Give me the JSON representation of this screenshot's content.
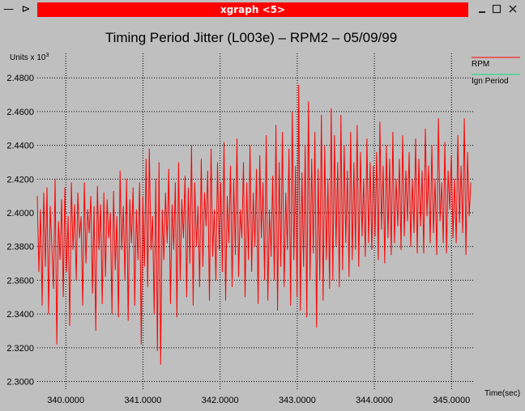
{
  "window": {
    "title": "xgraph <5>",
    "icons": [
      "minus-pin-icon",
      "minimize-icon",
      "maximize-icon",
      "close-icon"
    ]
  },
  "chart_data": {
    "type": "line",
    "title": "Timing Period Jitter (L003e) – RPM2 – 05/09/99",
    "ylabel": "Units x 10",
    "ylabel_exponent": "3",
    "xlabel": "Time(sec)",
    "xlim": [
      339.63,
      345.28
    ],
    "ylim": [
      2.2945,
      2.4945
    ],
    "x_ticks": [
      "340.0000",
      "341.0000",
      "342.0000",
      "343.0000",
      "344.0000",
      "345.0000"
    ],
    "x_tick_values": [
      340,
      341,
      342,
      343,
      344,
      345
    ],
    "y_ticks": [
      "2.3000",
      "2.3200",
      "2.3400",
      "2.3600",
      "2.3800",
      "2.4000",
      "2.4200",
      "2.4400",
      "2.4600",
      "2.4800"
    ],
    "y_tick_values": [
      2.3,
      2.32,
      2.34,
      2.36,
      2.38,
      2.4,
      2.42,
      2.44,
      2.46,
      2.48
    ],
    "grid": true,
    "legend_position": "top-right",
    "series": [
      {
        "name": "RPM",
        "color": "#ff0000",
        "x_start": 339.63,
        "x_end": 345.25,
        "values": [
          2.41,
          2.365,
          2.402,
          2.345,
          2.412,
          2.368,
          2.415,
          2.34,
          2.404,
          2.38,
          2.355,
          2.42,
          2.322,
          2.395,
          2.372,
          2.408,
          2.35,
          2.415,
          2.365,
          2.398,
          2.333,
          2.418,
          2.378,
          2.405,
          2.36,
          2.412,
          2.385,
          2.398,
          2.345,
          2.418,
          2.37,
          2.402,
          2.388,
          2.41,
          2.352,
          2.404,
          2.33,
          2.416,
          2.378,
          2.405,
          2.346,
          2.412,
          2.362,
          2.408,
          2.385,
          2.4,
          2.34,
          2.413,
          2.366,
          2.398,
          2.338,
          2.425,
          2.378,
          2.404,
          2.36,
          2.42,
          2.336,
          2.408,
          2.382,
          2.415,
          2.345,
          2.402,
          2.372,
          2.418,
          2.322,
          2.41,
          2.368,
          2.432,
          2.356,
          2.438,
          2.378,
          2.398,
          2.34,
          2.42,
          2.318,
          2.43,
          2.31,
          2.402,
          2.372,
          2.412,
          2.382,
          2.426,
          2.346,
          2.405,
          2.378,
          2.418,
          2.338,
          2.43,
          2.36,
          2.408,
          2.385,
          2.422,
          2.35,
          2.415,
          2.37,
          2.44,
          2.345,
          2.418,
          2.38,
          2.404,
          2.356,
          2.432,
          2.368,
          2.412,
          2.392,
          2.425,
          2.348,
          2.438,
          2.374,
          2.402,
          2.36,
          2.43,
          2.378,
          2.418,
          2.365,
          2.442,
          2.348,
          2.41,
          2.382,
          2.428,
          2.356,
          2.42,
          2.375,
          2.444,
          2.362,
          2.402,
          2.385,
          2.43,
          2.35,
          2.418,
          2.372,
          2.44,
          2.365,
          2.412,
          2.38,
          2.426,
          2.346,
          2.434,
          2.385,
          2.418,
          2.36,
          2.446,
          2.348,
          2.402,
          2.374,
          2.422,
          2.36,
          2.452,
          2.342,
          2.43,
          2.368,
          2.448,
          2.356,
          2.412,
          2.378,
          2.438,
          2.345,
          2.46,
          2.372,
          2.428,
          2.35,
          2.476,
          2.342,
          2.424,
          2.368,
          2.44,
          2.338,
          2.466,
          2.36,
          2.432,
          2.376,
          2.448,
          2.332,
          2.426,
          2.36,
          2.458,
          2.348,
          2.44,
          2.372,
          2.42,
          2.355,
          2.462,
          2.36,
          2.446,
          2.38,
          2.43,
          2.356,
          2.458,
          2.366,
          2.44,
          2.382,
          2.425,
          2.362,
          2.448,
          2.372,
          2.43,
          2.378,
          2.452,
          2.368,
          2.436,
          2.386,
          2.42,
          2.374,
          2.444,
          2.382,
          2.43,
          2.378,
          2.428,
          2.386,
          2.436,
          2.372,
          2.454,
          2.39,
          2.428,
          2.37,
          2.44,
          2.385,
          2.432,
          2.375,
          2.448,
          2.382,
          2.42,
          2.392,
          2.432,
          2.378,
          2.446,
          2.386,
          2.425,
          2.395,
          2.436,
          2.38,
          2.42,
          2.388,
          2.444,
          2.376,
          2.432,
          2.392,
          2.425,
          2.376,
          2.45,
          2.398,
          2.428,
          2.382,
          2.44,
          2.388,
          2.42,
          2.375,
          2.456,
          2.395,
          2.418,
          2.382,
          2.442,
          2.376,
          2.425,
          2.402,
          2.434,
          2.385,
          2.42,
          2.382,
          2.446,
          2.394,
          2.428,
          2.388,
          2.456,
          2.375,
          2.436,
          2.398,
          2.418
        ]
      },
      {
        "name": "Ign Period",
        "color": "#00e080",
        "values": []
      }
    ]
  }
}
